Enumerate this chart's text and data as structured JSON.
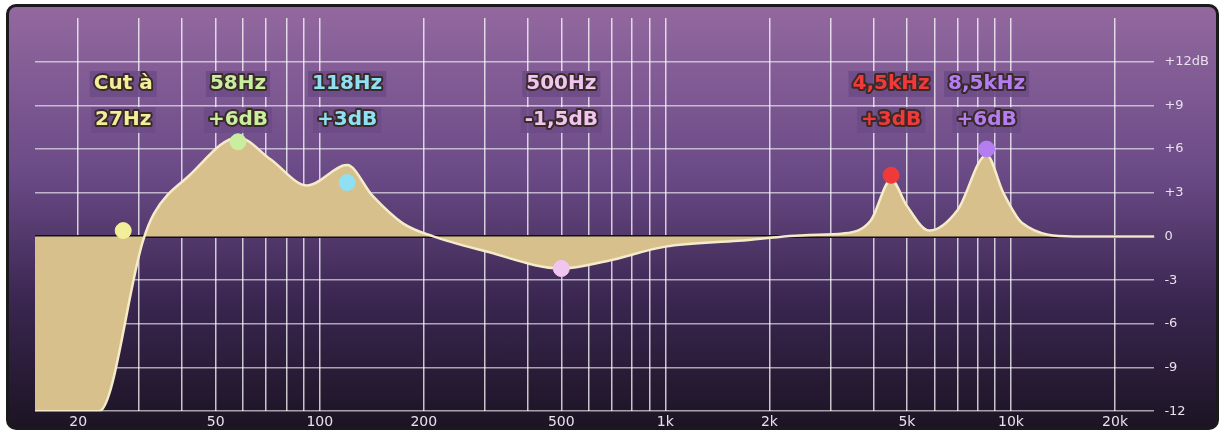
{
  "chart_data": {
    "type": "area",
    "log": "x",
    "xlim": [
      15,
      26000
    ],
    "ylim": [
      -12,
      15
    ],
    "xticks": [
      20,
      {
        "value": 30,
        "label": null
      },
      {
        "value": 40,
        "label": null
      },
      50,
      {
        "value": 60,
        "label": null
      },
      {
        "value": 70,
        "label": null
      },
      {
        "value": 80,
        "label": null
      },
      {
        "value": 90,
        "label": null
      },
      100,
      200,
      {
        "value": 300,
        "label": null
      },
      {
        "value": 400,
        "label": null
      },
      500,
      {
        "value": 600,
        "label": null
      },
      {
        "value": 700,
        "label": null
      },
      {
        "value": 800,
        "label": null
      },
      {
        "value": 900,
        "label": null
      },
      {
        "value": 1000,
        "label": "1k"
      },
      {
        "value": 2000,
        "label": "2k"
      },
      {
        "value": 3000,
        "label": null
      },
      {
        "value": 4000,
        "label": null
      },
      {
        "value": 5000,
        "label": "5k"
      },
      {
        "value": 6000,
        "label": null
      },
      {
        "value": 7000,
        "label": null
      },
      {
        "value": 8000,
        "label": null
      },
      {
        "value": 9000,
        "label": null
      },
      {
        "value": 10000,
        "label": "10k"
      },
      {
        "value": 20000,
        "label": "20k"
      }
    ],
    "yticks": [
      {
        "value": -12,
        "label": "-12"
      },
      {
        "value": -9,
        "label": "-9"
      },
      {
        "value": -6,
        "label": "-6"
      },
      {
        "value": -3,
        "label": "-3"
      },
      0,
      {
        "value": 3,
        "label": "+3"
      },
      {
        "value": 6,
        "label": "+6"
      },
      {
        "value": 9,
        "label": "+9"
      },
      {
        "value": 12,
        "label": "+12dB"
      }
    ],
    "grid": true,
    "series": [
      {
        "color": "#d8c08c",
        "x": [
          15,
          23,
          30.8,
          33.2,
          42,
          58,
          72,
          92,
          120,
          142,
          174,
          213,
          300,
          500,
          675,
          1000,
          1630,
          2600,
          3270,
          3930,
          4500,
          5000,
          5800,
          7000,
          8500,
          9500,
          10800,
          15200,
          26000
        ],
        "values": [
          -12,
          -12,
          -0.3,
          1.6,
          4.2,
          6.8,
          5.3,
          3.5,
          4.9,
          2.8,
          0.9,
          0,
          -1.0,
          -2.2,
          -1.7,
          -0.7,
          -0.3,
          0.1,
          0.2,
          1.1,
          3.9,
          2.1,
          0.4,
          1.8,
          5.6,
          3.0,
          0.9,
          0,
          0
        ]
      },
      {
        "type": "scatter",
        "x": [
          27,
          58,
          120,
          500,
          4500,
          8500
        ],
        "values": [
          0.4,
          6.5,
          3.7,
          -2.2,
          4.2,
          6.0
        ],
        "colors": [
          "#f2ee9a",
          "#c9eea0",
          "#8fe0f2",
          "#f0c6f0",
          "#f03a3a",
          "#b47ef0"
        ]
      }
    ],
    "annotations": [
      "Cut à\n27Hz",
      "58Hz\n+6dB",
      "118Hz\n+3dB",
      "500Hz\n-1,5dB",
      "4,5kHz\n+3dB",
      "8,5kHz\n+6dB"
    ]
  }
}
